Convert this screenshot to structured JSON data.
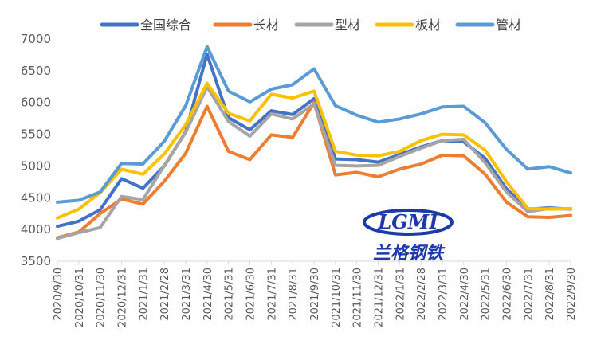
{
  "chart_data": {
    "type": "line",
    "title": "",
    "xlabel": "",
    "ylabel": "",
    "ylim": [
      3500,
      7000
    ],
    "yticks": [
      3500,
      4000,
      4500,
      5000,
      5500,
      6000,
      6500,
      7000
    ],
    "grid": false,
    "legend": "top",
    "x": [
      "2020/9/30",
      "2020/10/31",
      "2020/11/30",
      "2020/12/31",
      "2021/1/31",
      "2021/2/28",
      "2021/3/31",
      "2021/4/30",
      "2021/5/31",
      "2021/6/30",
      "2021/7/31",
      "2021/8/31",
      "2021/9/30",
      "2021/10/31",
      "2021/11/30",
      "2021/12/31",
      "2022/1/31",
      "2022/2/28",
      "2022/3/31",
      "2022/4/30",
      "2022/5/31",
      "2022/6/30",
      "2022/7/31",
      "2022/8/31",
      "2022/9/30"
    ],
    "series": [
      {
        "name": "全国综合",
        "color": "#4472c4",
        "values": [
          4050,
          4130,
          4310,
          4800,
          4650,
          5000,
          5540,
          6760,
          5760,
          5570,
          5870,
          5810,
          6060,
          5110,
          5100,
          5060,
          5180,
          5300,
          5400,
          5380,
          5120,
          4640,
          4320,
          4340,
          4320
        ]
      },
      {
        "name": "长材",
        "color": "#ed7d31",
        "values": [
          3870,
          3960,
          4250,
          4480,
          4400,
          4760,
          5200,
          5940,
          5230,
          5100,
          5490,
          5450,
          6000,
          4860,
          4900,
          4830,
          4950,
          5030,
          5170,
          5160,
          4870,
          4430,
          4200,
          4190,
          4220
        ]
      },
      {
        "name": "型材",
        "color": "#a5a5a5",
        "values": [
          3860,
          3950,
          4030,
          4520,
          4470,
          5010,
          5530,
          6250,
          5700,
          5470,
          5820,
          5740,
          5980,
          5010,
          5000,
          5010,
          5150,
          5280,
          5400,
          5420,
          5050,
          4590,
          4280,
          4330,
          4320
        ]
      },
      {
        "name": "板材",
        "color": "#ffc000",
        "values": [
          4180,
          4320,
          4580,
          4950,
          4870,
          5190,
          5650,
          6300,
          5830,
          5710,
          6130,
          6070,
          6180,
          5230,
          5170,
          5160,
          5230,
          5400,
          5500,
          5490,
          5250,
          4750,
          4330,
          4320,
          4330
        ]
      },
      {
        "name": "管材",
        "color": "#5b9bd5",
        "values": [
          4430,
          4460,
          4590,
          5040,
          5030,
          5390,
          5950,
          6880,
          6180,
          6010,
          6210,
          6280,
          6530,
          5950,
          5800,
          5690,
          5740,
          5820,
          5930,
          5940,
          5680,
          5260,
          4950,
          4990,
          4890
        ]
      }
    ]
  },
  "watermark": {
    "logo_text": "LGMI",
    "name_text": "兰格钢铁"
  }
}
